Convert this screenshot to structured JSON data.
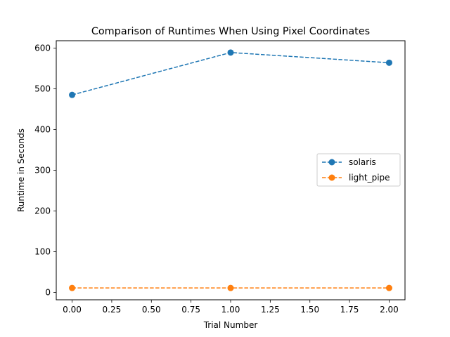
{
  "chart_data": {
    "type": "line",
    "title": "Comparison of Runtimes When Using Pixel Coordinates",
    "xlabel": "Trial Number",
    "ylabel": "Runtime in Seconds",
    "xlim": [
      -0.1,
      2.1
    ],
    "ylim": [
      -18,
      618
    ],
    "xticks": [
      0.0,
      0.25,
      0.5,
      0.75,
      1.0,
      1.25,
      1.5,
      1.75,
      2.0
    ],
    "xtick_labels": [
      "0.00",
      "0.25",
      "0.50",
      "0.75",
      "1.00",
      "1.25",
      "1.50",
      "1.75",
      "2.00"
    ],
    "yticks": [
      0,
      100,
      200,
      300,
      400,
      500,
      600
    ],
    "ytick_labels": [
      "0",
      "100",
      "200",
      "300",
      "400",
      "500",
      "600"
    ],
    "grid": false,
    "legend_position": "center-right",
    "x": [
      0,
      1,
      2
    ],
    "series": [
      {
        "name": "solaris",
        "color": "#1f77b4",
        "line_style": "dashed",
        "marker": "circle",
        "values": [
          485,
          589,
          564
        ]
      },
      {
        "name": "light_pipe",
        "color": "#ff7f0e",
        "line_style": "dashed",
        "marker": "circle",
        "values": [
          11,
          11,
          11
        ]
      }
    ]
  }
}
